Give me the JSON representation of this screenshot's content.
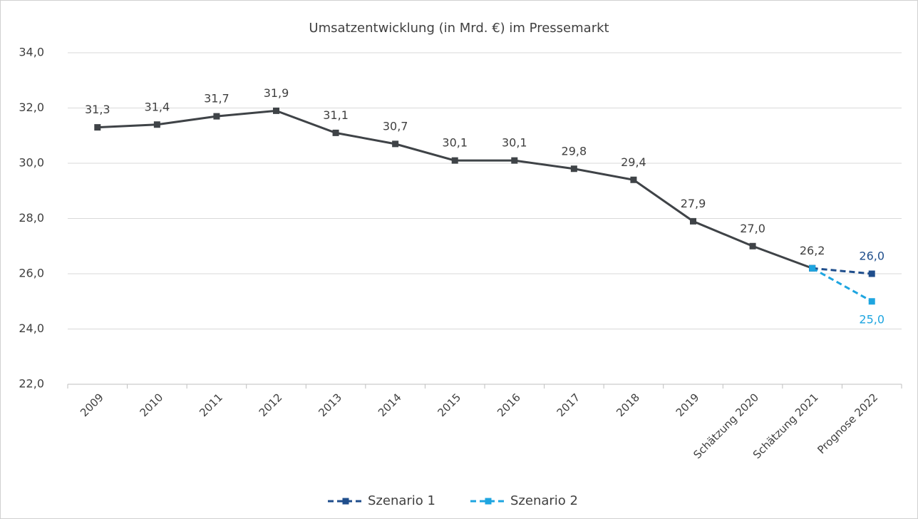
{
  "chart_data": {
    "type": "line",
    "title": "Umsatzentwicklung (in Mrd. €) im Pressemarkt",
    "categories": [
      "2009",
      "2010",
      "2011",
      "2012",
      "2013",
      "2014",
      "2015",
      "2016",
      "2017",
      "2018",
      "2019",
      "Schätzung 2020",
      "Schätzung 2021",
      "Prognose 2022"
    ],
    "series": [
      {
        "color": "#3f4347",
        "dash": false,
        "values": [
          31.3,
          31.4,
          31.7,
          31.9,
          31.1,
          30.7,
          30.1,
          30.1,
          29.8,
          29.4,
          27.9,
          27.0,
          26.2,
          null
        ],
        "value_labels": [
          "31,3",
          "31,4",
          "31,7",
          "31,9",
          "31,1",
          "30,7",
          "30,1",
          "30,1",
          "29,8",
          "29,4",
          "27,9",
          "27,0",
          "26,2",
          null
        ]
      },
      {
        "name": "Szenario 1",
        "color": "#1f4e8c",
        "dash": true,
        "values": [
          null,
          null,
          null,
          null,
          null,
          null,
          null,
          null,
          null,
          null,
          null,
          null,
          26.2,
          26.0
        ],
        "value_labels": [
          null,
          null,
          null,
          null,
          null,
          null,
          null,
          null,
          null,
          null,
          null,
          null,
          null,
          "26,0"
        ]
      },
      {
        "name": "Szenario 2",
        "color": "#1ea5e0",
        "dash": true,
        "values": [
          null,
          null,
          null,
          null,
          null,
          null,
          null,
          null,
          null,
          null,
          null,
          null,
          26.2,
          25.0
        ],
        "value_labels": [
          null,
          null,
          null,
          null,
          null,
          null,
          null,
          null,
          null,
          null,
          null,
          null,
          null,
          "25,0"
        ]
      }
    ],
    "ylim": [
      22,
      34
    ],
    "yticks": [
      {
        "value": 22,
        "label": "22,0"
      },
      {
        "value": 24,
        "label": "24,0"
      },
      {
        "value": 26,
        "label": "26,0"
      },
      {
        "value": 28,
        "label": "28,0"
      },
      {
        "value": 30,
        "label": "30,0"
      },
      {
        "value": 32,
        "label": "32,0"
      },
      {
        "value": 34,
        "label": "34,0"
      }
    ],
    "grid": true,
    "legend": "bottom"
  }
}
